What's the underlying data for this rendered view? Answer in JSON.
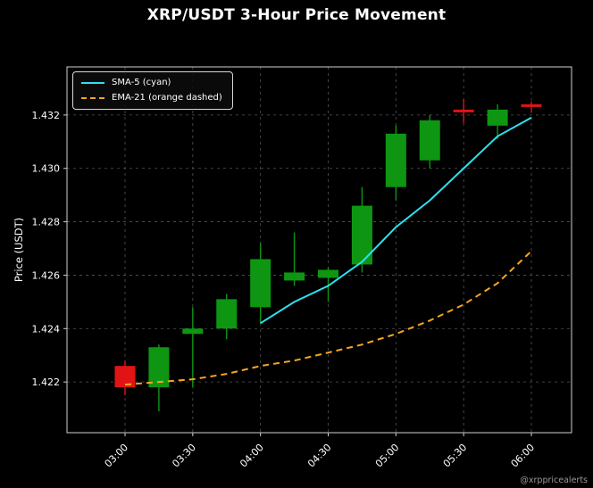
{
  "footer": {
    "watermark": "@xrppricealerts"
  },
  "chart_data": {
    "type": "candlestick",
    "title": "XRP/USDT 3-Hour Price Movement",
    "ylabel": "Price (USDT)",
    "grid": true,
    "legend_position": "upper-left",
    "x_tick_labels": [
      "03:00",
      "03:30",
      "04:00",
      "04:30",
      "05:00",
      "05:30",
      "06:00"
    ],
    "x_tick_indices": [
      0,
      2,
      4,
      6,
      8,
      10,
      12
    ],
    "y_ticks": [
      1.422,
      1.424,
      1.426,
      1.428,
      1.43,
      1.432
    ],
    "ylim": [
      1.4201,
      1.4338
    ],
    "colors": {
      "up": "#0e9612",
      "down": "#e01414",
      "sma": "#2fe0ef",
      "ema": "#f5a623",
      "grid": "#555555",
      "spine": "#cfcfcf",
      "text": "#ffffff",
      "background": "#000000"
    },
    "candles": [
      {
        "time": "03:00",
        "open": 1.4226,
        "high": 1.4228,
        "low": 1.4215,
        "close": 1.4218
      },
      {
        "time": "03:15",
        "open": 1.4218,
        "high": 1.4234,
        "low": 1.4209,
        "close": 1.4233
      },
      {
        "time": "03:30",
        "open": 1.4238,
        "high": 1.4248,
        "low": 1.4218,
        "close": 1.424
      },
      {
        "time": "03:45",
        "open": 1.424,
        "high": 1.4253,
        "low": 1.4236,
        "close": 1.4251
      },
      {
        "time": "04:00",
        "open": 1.4248,
        "high": 1.4272,
        "low": 1.4242,
        "close": 1.4266
      },
      {
        "time": "04:15",
        "open": 1.4258,
        "high": 1.4276,
        "low": 1.4256,
        "close": 1.4261
      },
      {
        "time": "04:30",
        "open": 1.4259,
        "high": 1.4263,
        "low": 1.425,
        "close": 1.4262
      },
      {
        "time": "04:45",
        "open": 1.4264,
        "high": 1.4293,
        "low": 1.4261,
        "close": 1.4286
      },
      {
        "time": "05:00",
        "open": 1.4293,
        "high": 1.4316,
        "low": 1.4288,
        "close": 1.4313
      },
      {
        "time": "05:15",
        "open": 1.4303,
        "high": 1.432,
        "low": 1.43,
        "close": 1.4318
      },
      {
        "time": "05:30",
        "open": 1.4322,
        "high": 1.4326,
        "low": 1.4317,
        "close": 1.4321
      },
      {
        "time": "05:45",
        "open": 1.4316,
        "high": 1.4324,
        "low": 1.4311,
        "close": 1.4322
      },
      {
        "time": "06:00",
        "open": 1.4324,
        "high": 1.4325,
        "low": 1.4321,
        "close": 1.4323
      }
    ],
    "series": [
      {
        "name": "SMA-5 (cyan)",
        "style": "solid",
        "color": "#2fe0ef",
        "values": [
          null,
          null,
          null,
          null,
          1.4242,
          1.425,
          1.4256,
          1.4265,
          1.4278,
          1.4288,
          1.43,
          1.4312,
          1.4319
        ]
      },
      {
        "name": "EMA-21 (orange dashed)",
        "style": "dashed",
        "color": "#f5a623",
        "values": [
          1.4219,
          1.422,
          1.4221,
          1.4223,
          1.4226,
          1.4228,
          1.4231,
          1.4234,
          1.4238,
          1.4243,
          1.4249,
          1.4257,
          1.4269
        ]
      }
    ]
  }
}
